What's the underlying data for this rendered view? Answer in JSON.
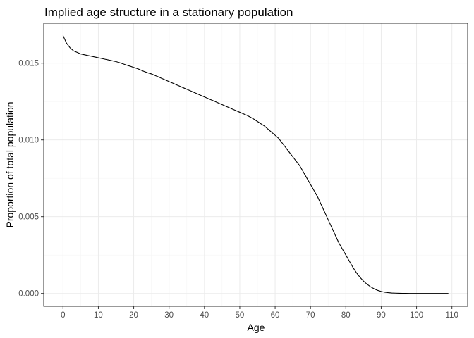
{
  "chart_data": {
    "type": "line",
    "title": "Implied age structure in a stationary population",
    "xlabel": "Age",
    "ylabel": "Proportion of total population",
    "xlim": [
      -5.45,
      114.45
    ],
    "ylim": [
      -0.00084,
      0.0176
    ],
    "x_ticks": [
      0,
      10,
      20,
      30,
      40,
      50,
      60,
      70,
      80,
      90,
      100,
      110
    ],
    "x_tick_labels": [
      "0",
      "10",
      "20",
      "30",
      "40",
      "50",
      "60",
      "70",
      "80",
      "90",
      "100",
      "110"
    ],
    "y_ticks": [
      0.0,
      0.005,
      0.01,
      0.015
    ],
    "y_tick_labels": [
      "0.000",
      "0.005",
      "0.010",
      "0.015"
    ],
    "grid": true,
    "legend": "none",
    "colors": {
      "line": "#000000",
      "grid_major": "#ebebeb",
      "grid_minor": "#f5f5f5",
      "panel_border": "#333333",
      "tick_text": "#4d4d4d"
    },
    "series": [
      {
        "x": [
          0,
          1,
          2,
          3,
          4,
          5,
          6,
          7,
          8,
          9,
          10,
          11,
          12,
          13,
          14,
          15,
          16,
          17,
          18,
          19,
          20,
          21,
          22,
          23,
          24,
          25,
          26,
          27,
          28,
          29,
          30,
          31,
          32,
          33,
          34,
          35,
          36,
          37,
          38,
          39,
          40,
          41,
          42,
          43,
          44,
          45,
          46,
          47,
          48,
          49,
          50,
          51,
          52,
          53,
          54,
          55,
          56,
          57,
          58,
          59,
          60,
          61,
          62,
          63,
          64,
          65,
          66,
          67,
          68,
          69,
          70,
          71,
          72,
          73,
          74,
          75,
          76,
          77,
          78,
          79,
          80,
          81,
          82,
          83,
          84,
          85,
          86,
          87,
          88,
          89,
          90,
          91,
          92,
          93,
          94,
          95,
          96,
          97,
          98,
          99,
          100,
          101,
          102,
          103,
          104,
          105,
          106,
          107,
          108,
          109
        ],
        "values": [
          0.0168,
          0.0163,
          0.016,
          0.0158,
          0.0157,
          0.0156,
          0.01555,
          0.0155,
          0.01545,
          0.0154,
          0.01535,
          0.0153,
          0.01525,
          0.0152,
          0.01515,
          0.0151,
          0.01503,
          0.01495,
          0.01487,
          0.0148,
          0.01472,
          0.01465,
          0.01455,
          0.01445,
          0.01437,
          0.0143,
          0.0142,
          0.0141,
          0.014,
          0.0139,
          0.0138,
          0.0137,
          0.0136,
          0.0135,
          0.0134,
          0.0133,
          0.0132,
          0.0131,
          0.013,
          0.0129,
          0.0128,
          0.0127,
          0.0126,
          0.0125,
          0.0124,
          0.0123,
          0.0122,
          0.0121,
          0.012,
          0.0119,
          0.0118,
          0.0117,
          0.0116,
          0.01148,
          0.01135,
          0.0112,
          0.01105,
          0.0109,
          0.0107,
          0.0105,
          0.0103,
          0.0101,
          0.0098,
          0.0095,
          0.0092,
          0.0089,
          0.0086,
          0.0083,
          0.0079,
          0.0075,
          0.0071,
          0.0067,
          0.0063,
          0.0058,
          0.0053,
          0.0048,
          0.0043,
          0.0038,
          0.0033,
          0.0029,
          0.0025,
          0.0021,
          0.0017,
          0.00135,
          0.00105,
          0.0008,
          0.0006,
          0.00043,
          0.0003,
          0.0002,
          0.00013,
          8e-05,
          5e-05,
          3e-05,
          2e-05,
          1.2e-05,
          8e-06,
          5e-06,
          3e-06,
          2e-06,
          1.5e-06,
          1e-06,
          8e-07,
          5e-07,
          3e-07,
          2e-07,
          1e-07,
          1e-07,
          5e-08,
          0.0
        ]
      }
    ]
  }
}
